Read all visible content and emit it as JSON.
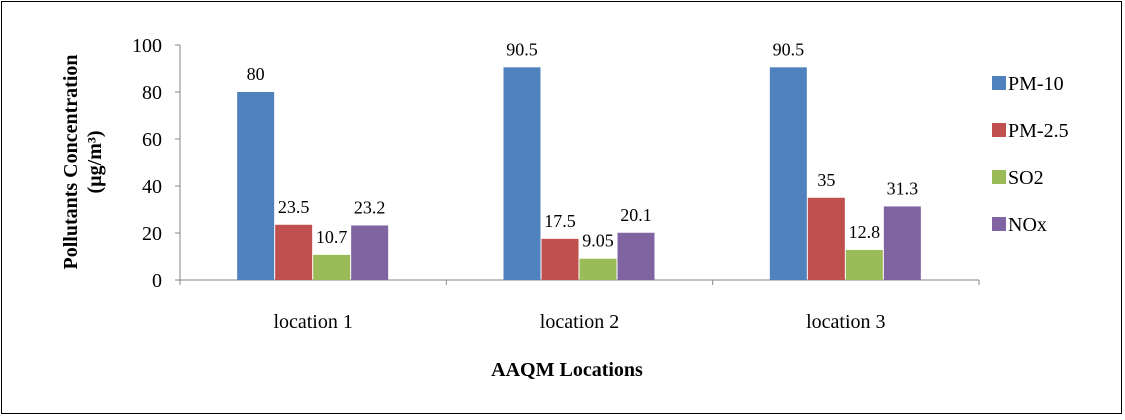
{
  "chart_data": {
    "type": "bar",
    "title": "",
    "xlabel": "AAQM Locations",
    "ylabel_line1": "Pollutants Concentration",
    "ylabel_line2": "(µg/m³)",
    "ylim": [
      0,
      100
    ],
    "yticks": [
      "0",
      "20",
      "40",
      "60",
      "80",
      "100"
    ],
    "categories": [
      "location 1",
      "location 2",
      "location 3"
    ],
    "series": [
      {
        "name": "PM-10",
        "color": "#4F81BD",
        "values": [
          80,
          90.5,
          90.5
        ],
        "labels": [
          "80",
          "90.5",
          "90.5"
        ]
      },
      {
        "name": "PM-2.5",
        "color": "#C0504D",
        "values": [
          23.5,
          17.5,
          35
        ],
        "labels": [
          "23.5",
          "17.5",
          "35"
        ]
      },
      {
        "name": "SO2",
        "color": "#9BBB59",
        "values": [
          10.7,
          9.05,
          12.8
        ],
        "labels": [
          "10.7",
          "9.05",
          "12.8"
        ]
      },
      {
        "name": "NOx",
        "color": "#8064A2",
        "values": [
          23.2,
          20.1,
          31.3
        ],
        "labels": [
          "23.2",
          "20.1",
          "31.3"
        ]
      }
    ],
    "legend": "right",
    "grid": false
  }
}
